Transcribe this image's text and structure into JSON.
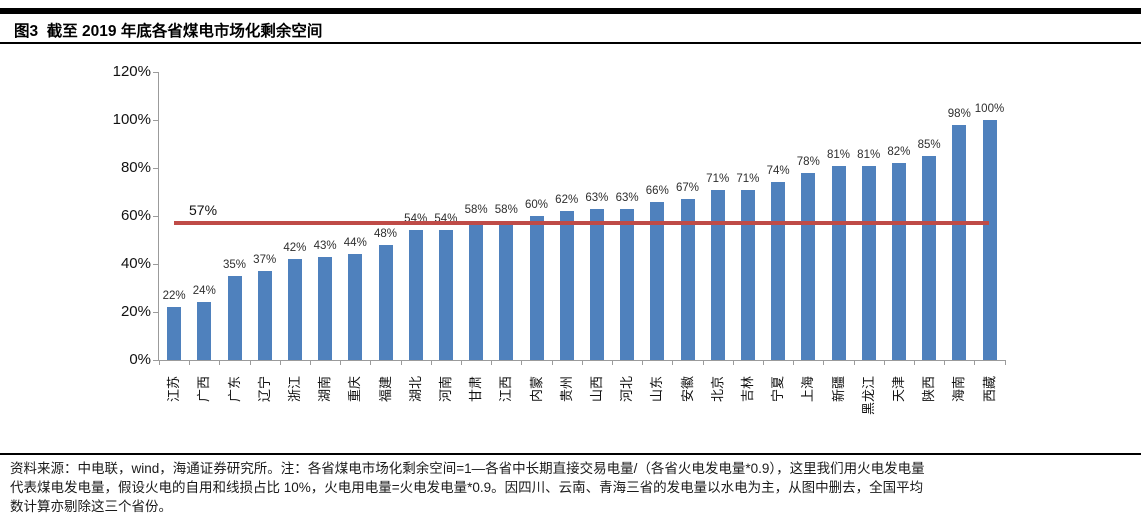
{
  "header": {
    "title": "图3  截至 2019 年底各省煤电市场化剩余空间"
  },
  "chart_data": {
    "type": "bar",
    "title": "截至2019年底各省煤电市场化剩余空间",
    "categories": [
      "江苏",
      "广西",
      "广东",
      "辽宁",
      "浙江",
      "湖南",
      "重庆",
      "福建",
      "湖北",
      "河南",
      "甘肃",
      "江西",
      "内蒙",
      "贵州",
      "山西",
      "河北",
      "山东",
      "安徽",
      "北京",
      "吉林",
      "宁夏",
      "上海",
      "新疆",
      "黑龙江",
      "天津",
      "陕西",
      "海南",
      "西藏"
    ],
    "values": [
      22,
      24,
      35,
      37,
      42,
      43,
      44,
      48,
      54,
      54,
      58,
      58,
      60,
      62,
      63,
      63,
      66,
      67,
      71,
      71,
      74,
      78,
      81,
      81,
      82,
      85,
      98,
      100
    ],
    "unit": "%",
    "xlabel": "",
    "ylabel": "",
    "ylim": [
      0,
      120
    ],
    "ytick_step": 20,
    "ytick_labels": [
      "0%",
      "20%",
      "40%",
      "60%",
      "80%",
      "100%",
      "120%"
    ],
    "bar_color": "#4f81bd",
    "reference_line": {
      "value": 57,
      "label": "57%",
      "color": "#bf4b47"
    },
    "grid": false,
    "legend": false
  },
  "footer": {
    "lines": [
      "资料来源：中电联，wind，海通证券研究所。注：各省煤电市场化剩余空间=1—各省中长期直接交易电量/（各省火电发电量*0.9），这里我们用火电发电量",
      "代表煤电发电量，假设火电的自用和线损占比 10%，火电用电量=火电发电量*0.9。因四川、云南、青海三省的发电量以水电为主，从图中删去，全国平均",
      "数计算亦剔除这三个省份。"
    ]
  }
}
